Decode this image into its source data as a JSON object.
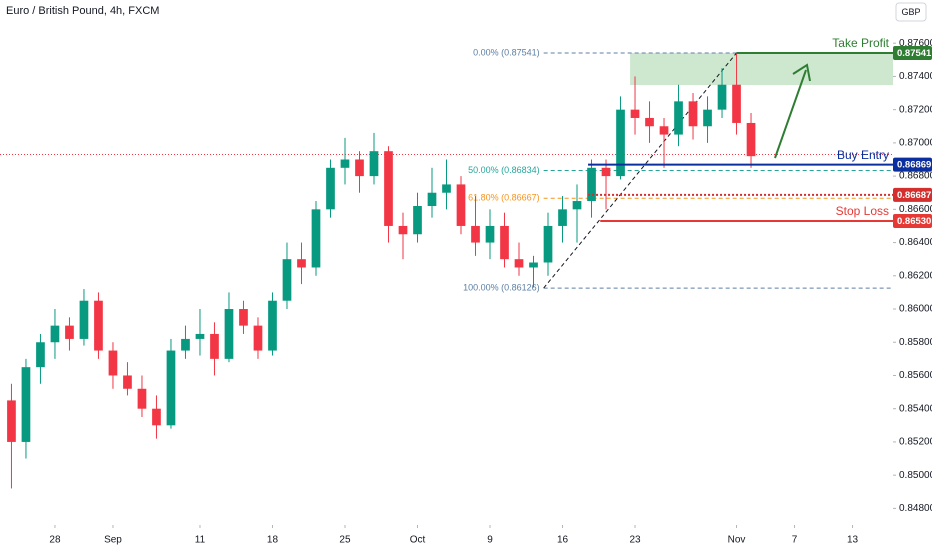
{
  "chart_data": {
    "type": "candlestick",
    "title": "Euro / British Pound, 4h, FXCM",
    "currency": "GBP",
    "up_color": "#089981",
    "down_color": "#f23645",
    "xlim": [
      -3.79,
      57.79
    ],
    "ylim": [
      0.847,
      0.8786
    ],
    "xticks": [
      {
        "value": 0,
        "label": "28"
      },
      {
        "value": 4,
        "label": "Sep"
      },
      {
        "value": 10,
        "label": "11"
      },
      {
        "value": 15,
        "label": "18"
      },
      {
        "value": 20,
        "label": "25"
      },
      {
        "value": 25,
        "label": "Oct"
      },
      {
        "value": 30,
        "label": "9"
      },
      {
        "value": 35,
        "label": "16"
      },
      {
        "value": 40,
        "label": "23"
      },
      {
        "value": 47,
        "label": "Nov"
      },
      {
        "value": 51,
        "label": "7"
      },
      {
        "value": 55,
        "label": "13"
      }
    ],
    "yticks": [
      {
        "value": 0.848,
        "label": "0.84800"
      },
      {
        "value": 0.85,
        "label": "0.85000"
      },
      {
        "value": 0.852,
        "label": "0.85200"
      },
      {
        "value": 0.854,
        "label": "0.85400"
      },
      {
        "value": 0.856,
        "label": "0.85600"
      },
      {
        "value": 0.858,
        "label": "0.85800"
      },
      {
        "value": 0.86,
        "label": "0.86000"
      },
      {
        "value": 0.862,
        "label": "0.86200"
      },
      {
        "value": 0.864,
        "label": "0.86400"
      },
      {
        "value": 0.866,
        "label": "0.86600"
      },
      {
        "value": 0.868,
        "label": "0.86800"
      },
      {
        "value": 0.87,
        "label": "0.87000"
      },
      {
        "value": 0.872,
        "label": "0.87200"
      },
      {
        "value": 0.874,
        "label": "0.87400"
      },
      {
        "value": 0.876,
        "label": "0.87600"
      }
    ],
    "x": [
      -3,
      -2,
      -1,
      0,
      1,
      2,
      3,
      4,
      5,
      6,
      7,
      8,
      9,
      10,
      11,
      12,
      13,
      14,
      15,
      16,
      17,
      18,
      19,
      20,
      21,
      22,
      23,
      24,
      25,
      26,
      27,
      28,
      29,
      30,
      31,
      32,
      33,
      34,
      35,
      36,
      37,
      38,
      39,
      40,
      41,
      42,
      43,
      44,
      45,
      46,
      47,
      48
    ],
    "open": [
      0.8545,
      0.852,
      0.8565,
      0.858,
      0.859,
      0.8582,
      0.8605,
      0.8575,
      0.856,
      0.8552,
      0.854,
      0.853,
      0.8575,
      0.8582,
      0.8585,
      0.857,
      0.86,
      0.859,
      0.8575,
      0.8605,
      0.863,
      0.8625,
      0.866,
      0.8685,
      0.869,
      0.868,
      0.8695,
      0.865,
      0.8645,
      0.8662,
      0.867,
      0.8675,
      0.865,
      0.864,
      0.865,
      0.863,
      0.8625,
      0.8628,
      0.865,
      0.866,
      0.8665,
      0.8685,
      0.868,
      0.872,
      0.8715,
      0.871,
      0.8705,
      0.8725,
      0.871,
      0.872,
      0.8735,
      0.8712
    ],
    "high": [
      0.8555,
      0.857,
      0.8585,
      0.86,
      0.8595,
      0.8612,
      0.861,
      0.858,
      0.8568,
      0.856,
      0.8548,
      0.8582,
      0.859,
      0.86,
      0.8592,
      0.861,
      0.8605,
      0.8595,
      0.861,
      0.864,
      0.864,
      0.8665,
      0.869,
      0.8703,
      0.8695,
      0.8706,
      0.8698,
      0.8658,
      0.867,
      0.8685,
      0.869,
      0.868,
      0.8668,
      0.866,
      0.8658,
      0.864,
      0.8632,
      0.8658,
      0.8668,
      0.8675,
      0.869,
      0.869,
      0.8728,
      0.874,
      0.8725,
      0.8715,
      0.8735,
      0.873,
      0.8728,
      0.8745,
      0.8754,
      0.8718
    ],
    "low": [
      0.8492,
      0.851,
      0.8555,
      0.857,
      0.8575,
      0.8578,
      0.857,
      0.8552,
      0.8548,
      0.8535,
      0.8522,
      0.8528,
      0.857,
      0.8572,
      0.856,
      0.8568,
      0.8585,
      0.857,
      0.8572,
      0.86,
      0.8615,
      0.862,
      0.8655,
      0.8675,
      0.867,
      0.8675,
      0.864,
      0.863,
      0.864,
      0.8655,
      0.866,
      0.8645,
      0.8632,
      0.863,
      0.8625,
      0.862,
      0.8613,
      0.862,
      0.864,
      0.864,
      0.8655,
      0.866,
      0.8678,
      0.8705,
      0.87,
      0.8685,
      0.8698,
      0.8702,
      0.87,
      0.8715,
      0.8705,
      0.8685
    ],
    "close": [
      0.852,
      0.8565,
      0.858,
      0.859,
      0.8582,
      0.8605,
      0.8575,
      0.856,
      0.8552,
      0.854,
      0.853,
      0.8575,
      0.8582,
      0.8585,
      0.857,
      0.86,
      0.859,
      0.8575,
      0.8605,
      0.863,
      0.8625,
      0.866,
      0.8685,
      0.869,
      0.868,
      0.8695,
      0.865,
      0.8645,
      0.8662,
      0.867,
      0.8675,
      0.865,
      0.864,
      0.865,
      0.863,
      0.8625,
      0.8628,
      0.865,
      0.866,
      0.8665,
      0.8685,
      0.868,
      0.872,
      0.8715,
      0.871,
      0.8705,
      0.8725,
      0.871,
      0.872,
      0.8735,
      0.8712,
      0.8692
    ],
    "current_price": 0.8693,
    "fib": {
      "x": [
        33.7,
        47.0
      ],
      "y": [
        0.86126,
        0.87541
      ],
      "levels": [
        {
          "label": "0.00% (0.87541)",
          "value": 0.87541,
          "color": "#5d7fa3"
        },
        {
          "label": "50.00% (0.86834)",
          "value": 0.86834,
          "color": "#26a69a"
        },
        {
          "label": "61.80% (0.86667)",
          "value": 0.86667,
          "color": "#f7931a"
        },
        {
          "label": "100.00% (0.86126)",
          "value": 0.86126,
          "color": "#5d7fa3"
        }
      ]
    },
    "target_zone": {
      "x0": 39.66,
      "top": 0.87541,
      "bottom": 0.87348,
      "color": "#a5d6a7"
    },
    "levels": [
      {
        "name": "Take Profit",
        "value": 0.87541,
        "x0": 47.0,
        "color": "#2e7d32",
        "style": "solid"
      },
      {
        "name": "Buy Entry",
        "value": 0.86869,
        "x0": 36.76,
        "color": "#0c2fa0",
        "style": "solid"
      },
      {
        "value": 0.86687,
        "x0": 36.76,
        "color": "#d32f2f",
        "style": "dotted"
      },
      {
        "name": "Stop Loss",
        "value": 0.8653,
        "label": "0.86530",
        "x0": 37.6,
        "color": "#e53935",
        "style": "solid"
      }
    ]
  }
}
